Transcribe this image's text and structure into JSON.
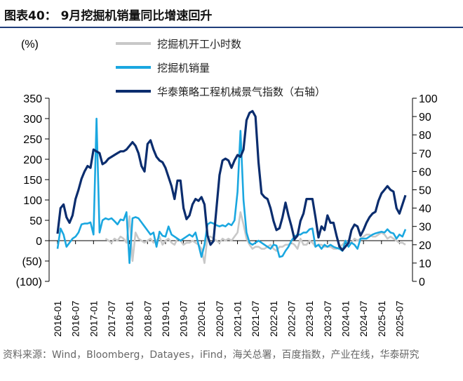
{
  "title": "图表40： 9月挖掘机销量同比增速回升",
  "source": "资料来源：Wind，Bloomberg，Datayes，iFind，海关总署，百度指数，产业在线，华泰研究",
  "chart_data": {
    "type": "line",
    "left_unit": "(%)",
    "ylim_left": [
      -100,
      350
    ],
    "yticks_left": [
      "350",
      "300",
      "250",
      "200",
      "150",
      "100",
      "50",
      "0",
      "(50)",
      "(100)"
    ],
    "ylim_right": [
      0,
      100
    ],
    "yticks_right": [
      "100",
      "90",
      "80",
      "70",
      "60",
      "50",
      "40",
      "30",
      "20",
      "10",
      "0"
    ],
    "xticks": [
      "2016-01",
      "2016-07",
      "2017-01",
      "2017-07",
      "2018-01",
      "2018-07",
      "2019-01",
      "2019-07",
      "2020-01",
      "2020-07",
      "2021-01",
      "2021-07",
      "2022-01",
      "2022-07",
      "2023-01",
      "2023-07",
      "2024-01",
      "2024-07",
      "2025-01",
      "2025-07"
    ],
    "x_start": "2016-01",
    "x_end": "2025-09",
    "grid": false,
    "legend": "top",
    "series": [
      {
        "name": "挖掘机开工小时数",
        "axis": "left",
        "color": "#c8c8c8",
        "values": [
          null,
          null,
          null,
          null,
          null,
          null,
          null,
          null,
          null,
          null,
          null,
          null,
          null,
          null,
          null,
          null,
          5,
          0,
          -5,
          5,
          0,
          10,
          5,
          -5,
          60,
          -50,
          20,
          5,
          0,
          -5,
          0,
          5,
          -5,
          0,
          10,
          -10,
          0,
          5,
          -5,
          -10,
          5,
          0,
          -10,
          -5,
          -5,
          0,
          -5,
          -10,
          -20,
          -55,
          10,
          10,
          5,
          0,
          -5,
          5,
          0,
          5,
          0,
          10,
          20,
          70,
          40,
          5,
          -10,
          -20,
          -15,
          -15,
          -20,
          -20,
          -15,
          -10,
          -20,
          -25,
          -15,
          -15,
          -10,
          -10,
          -5,
          -10,
          -20,
          5,
          -10,
          -10,
          0,
          -5,
          -15,
          -10,
          -10,
          -15,
          -15,
          -15,
          -20,
          -20,
          -15,
          -10,
          0,
          -5,
          -5,
          5,
          0,
          5,
          10,
          15,
          15,
          10,
          10,
          15,
          20,
          15,
          5,
          10,
          5,
          0,
          -5,
          -5,
          -10
        ]
      },
      {
        "name": "挖掘机销量",
        "axis": "left",
        "color": "#1aa7e0",
        "values": [
          -20,
          30,
          15,
          -15,
          -5,
          5,
          10,
          20,
          40,
          42,
          42,
          45,
          15,
          300,
          20,
          50,
          55,
          52,
          55,
          48,
          40,
          52,
          50,
          70,
          -55,
          55,
          58,
          55,
          45,
          35,
          25,
          15,
          20,
          -15,
          22,
          12,
          10,
          35,
          15,
          10,
          5,
          0,
          5,
          10,
          15,
          10,
          20,
          -10,
          -40,
          -10,
          40,
          45,
          42,
          38,
          35,
          38,
          35,
          42,
          38,
          50,
          120,
          270,
          100,
          20,
          -5,
          -10,
          -5,
          0,
          -5,
          -10,
          -15,
          -20,
          -10,
          -12,
          -40,
          -38,
          -25,
          -15,
          0,
          10,
          15,
          15,
          20,
          20,
          28,
          30,
          -15,
          -10,
          -20,
          -10,
          -15,
          -10,
          -15,
          -18,
          -20,
          -25,
          0,
          -15,
          -5,
          -10,
          -20,
          5,
          5,
          5,
          10,
          15,
          18,
          20,
          22,
          20,
          28,
          20,
          18,
          5,
          15,
          10,
          28
        ]
      },
      {
        "name": "华泰策略工程机械景气指数（右轴）",
        "axis": "right",
        "color": "#0b2d6e",
        "values": [
          26,
          40,
          42,
          35,
          32,
          36,
          45,
          50,
          56,
          60,
          63,
          62,
          72,
          71,
          70,
          64,
          65,
          67,
          68,
          69,
          70,
          71,
          71,
          72,
          74,
          76,
          74,
          70,
          63,
          60,
          75,
          77,
          72,
          68,
          66,
          65,
          62,
          57,
          52,
          45,
          55,
          55,
          40,
          34,
          36,
          42,
          45,
          44,
          46,
          42,
          25,
          20,
          22,
          40,
          58,
          66,
          67,
          66,
          62,
          66,
          69,
          68,
          72,
          88,
          92,
          93,
          90,
          65,
          48,
          46,
          45,
          40,
          33,
          28,
          29,
          35,
          43,
          36,
          30,
          23,
          25,
          33,
          37,
          45,
          45,
          45,
          35,
          24,
          30,
          28,
          36,
          32,
          32,
          25,
          19,
          17,
          19,
          21,
          28,
          31,
          30,
          25,
          28,
          32,
          35,
          37,
          38,
          44,
          48,
          50,
          52,
          50,
          49,
          40,
          37,
          42,
          47
        ]
      }
    ]
  }
}
